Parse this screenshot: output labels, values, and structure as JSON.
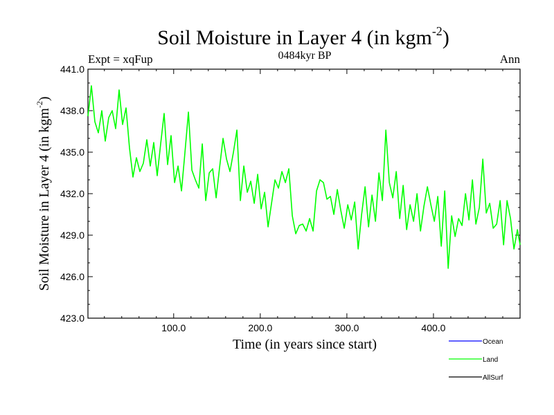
{
  "chart_data": {
    "type": "line",
    "title": "Soil Moisture in Layer 4 (in kgm",
    "title_sup": "-2",
    "title_close": ")",
    "subtitle_left": "Expt = xqFup",
    "subtitle_center": "0484kyr BP",
    "subtitle_right": "Ann",
    "xlabel": "Time (in years since start)",
    "ylabel": "Soil Moisture in Layer 4 (in kgm",
    "ylabel_sup": "-2",
    "ylabel_close": ")",
    "xlim": [
      1,
      500
    ],
    "ylim": [
      423.0,
      441.0
    ],
    "xticks": [
      100,
      200,
      300,
      400
    ],
    "xtick_labels": [
      "100.0",
      "200.0",
      "300.0",
      "400.0"
    ],
    "yticks": [
      423,
      426,
      429,
      432,
      435,
      438,
      441
    ],
    "ytick_labels": [
      "423.0",
      "426.0",
      "429.0",
      "432.0",
      "435.0",
      "438.0",
      "441.0"
    ],
    "legend": [
      {
        "name": "Ocean",
        "color": "#0000ff"
      },
      {
        "name": "Land",
        "color": "#00ff00"
      },
      {
        "name": "AllSurf",
        "color": "#000000"
      }
    ],
    "series": [
      {
        "name": "Land",
        "color": "#00ff00",
        "x": [
          1,
          5,
          9,
          13,
          17,
          21,
          25,
          29,
          33,
          37,
          41,
          45,
          49,
          53,
          57,
          61,
          65,
          69,
          73,
          77,
          81,
          85,
          89,
          93,
          97,
          101,
          105,
          109,
          113,
          117,
          121,
          125,
          129,
          133,
          137,
          141,
          145,
          149,
          153,
          157,
          161,
          165,
          169,
          173,
          177,
          181,
          185,
          189,
          193,
          197,
          201,
          205,
          209,
          213,
          217,
          221,
          225,
          229,
          233,
          237,
          241,
          245,
          249,
          253,
          257,
          261,
          265,
          269,
          273,
          277,
          281,
          285,
          289,
          293,
          297,
          301,
          305,
          309,
          313,
          317,
          321,
          325,
          329,
          333,
          337,
          341,
          345,
          349,
          353,
          357,
          361,
          365,
          369,
          373,
          377,
          381,
          385,
          389,
          393,
          397,
          401,
          405,
          409,
          413,
          417,
          421,
          425,
          429,
          433,
          437,
          441,
          445,
          449,
          453,
          457,
          461,
          465,
          469,
          473,
          477,
          481,
          485,
          489,
          493,
          497,
          500
        ],
        "values": [
          437.6,
          439.8,
          437.2,
          436.4,
          438.0,
          435.8,
          437.5,
          438.0,
          436.7,
          439.5,
          437.0,
          438.2,
          435.3,
          433.2,
          434.6,
          433.6,
          434.2,
          435.9,
          434.0,
          435.7,
          433.3,
          435.6,
          437.8,
          434.1,
          436.2,
          432.8,
          434.0,
          432.2,
          435.0,
          437.9,
          433.7,
          433.0,
          432.4,
          435.6,
          431.5,
          433.5,
          433.8,
          431.7,
          433.9,
          436.0,
          434.5,
          433.6,
          435.0,
          436.6,
          431.5,
          434.0,
          432.1,
          432.9,
          431.3,
          433.4,
          430.9,
          432.1,
          429.6,
          431.3,
          433.0,
          432.4,
          433.6,
          432.8,
          433.8,
          430.4,
          429.1,
          429.7,
          429.8,
          429.3,
          430.2,
          429.3,
          432.2,
          433.0,
          432.8,
          431.6,
          431.8,
          430.5,
          432.3,
          430.8,
          429.5,
          431.2,
          430.1,
          431.4,
          428.0,
          430.5,
          432.5,
          429.6,
          431.9,
          430.0,
          433.5,
          431.5,
          436.6,
          432.8,
          431.7,
          433.6,
          430.2,
          432.6,
          429.4,
          431.2,
          430.0,
          432.0,
          429.3,
          431.1,
          432.5,
          431.2,
          430.0,
          431.8,
          428.2,
          432.2,
          426.6,
          430.4,
          428.9,
          430.2,
          429.7,
          432.0,
          430.1,
          433.0,
          429.8,
          431.0,
          434.5,
          430.6,
          431.3,
          429.5,
          429.8,
          431.5,
          428.3,
          431.5,
          430.2,
          428.0,
          429.4,
          428.3
        ]
      }
    ]
  }
}
